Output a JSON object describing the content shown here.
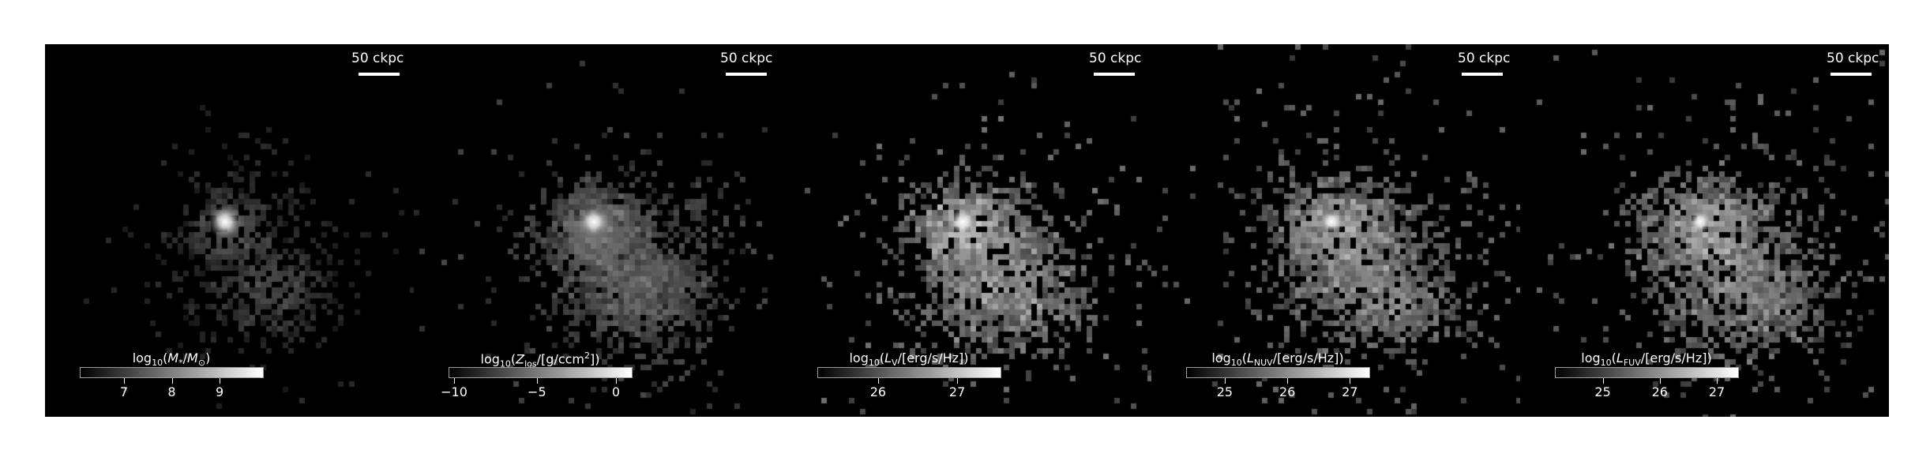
{
  "panels": [
    {
      "scale_label": "50 ckpc",
      "colorbar_label_html": "log<sub>10</sub>(<i>M</i><sub>*</sub>/<i>M</i><sub>⊙</sub>)",
      "ticks": [
        "7",
        "8",
        "9"
      ],
      "tick_fracs": [
        0.24,
        0.5,
        0.76
      ]
    },
    {
      "scale_label": "50 ckpc",
      "colorbar_label_html": "log<sub>10</sub>(<i>Z</i><sub>los</sub>/[g/ccm<sup>2</sup>])",
      "ticks": [
        "−10",
        "−5",
        "0"
      ],
      "tick_fracs": [
        0.03,
        0.48,
        0.91
      ]
    },
    {
      "scale_label": "50 ckpc",
      "colorbar_label_html": "log<sub>10</sub>(<i>L</i><sub>V</sub>/[erg/s/Hz])",
      "ticks": [
        "26",
        "27"
      ],
      "tick_fracs": [
        0.33,
        0.76
      ]
    },
    {
      "scale_label": "50 ckpc",
      "colorbar_label_html": "log<sub>10</sub>(<i>L</i><sub>NUV</sub>/[erg/s/Hz])",
      "ticks": [
        "25",
        "26",
        "27"
      ],
      "tick_fracs": [
        0.21,
        0.55,
        0.89
      ]
    },
    {
      "scale_label": "50 ckpc",
      "colorbar_label_html": "log<sub>10</sub>(<i>L</i><sub>FUV</sub>/[erg/s/Hz])",
      "ticks": [
        "25",
        "26",
        "27"
      ],
      "tick_fracs": [
        0.26,
        0.57,
        0.88
      ]
    }
  ]
}
